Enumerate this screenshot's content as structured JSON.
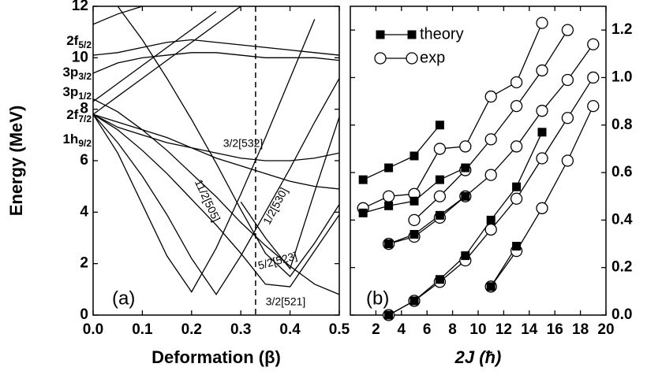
{
  "chart_data": [
    {
      "type": "line",
      "xlabel": "Deformation (β)",
      "ylabel": "Energy (MeV)",
      "panel_label": "(a)",
      "xlim": [
        0,
        0.5
      ],
      "ylim": [
        0,
        12
      ],
      "xticks": [
        {
          "value": 0,
          "label": "0.0"
        },
        0.1,
        0.2,
        0.3,
        0.4,
        0.5
      ],
      "yticks": [
        0,
        2,
        4,
        6,
        8,
        10,
        12
      ],
      "dashed_line_x": 0.33,
      "levels": [
        {
          "label": "2f",
          "sub": "5/2"
        },
        {
          "label": "3p",
          "sub": "3/2"
        },
        {
          "label": "3p",
          "sub": "1/2"
        },
        {
          "label": "2f",
          "sub": "7/2"
        },
        {
          "label": "1h",
          "sub": "9/2"
        }
      ],
      "annotations": [
        "3/2[532]",
        "11/2[505]",
        "1/2[530]",
        "5/2[523]",
        "3/2[521]"
      ],
      "color": "#000000",
      "x": [
        0,
        0.05,
        0.1,
        0.15,
        0.2,
        0.25,
        0.3,
        0.35,
        0.4,
        0.45,
        0.5
      ],
      "series": [
        {
          "values": [
            7.8,
            6.3,
            4.3,
            2.3,
            0.9,
            2.6,
            4.7,
            6.9,
            9.2,
            11.5,
            null
          ]
        },
        {
          "values": [
            7.8,
            6.7,
            5.4,
            3.9,
            2.2,
            0.8,
            2.3,
            4.0,
            5.7,
            7.5,
            9.2
          ]
        },
        {
          "values": [
            7.8,
            7.2,
            6.4,
            5.5,
            4.5,
            3.5,
            2.4,
            1.2,
            1.1,
            2.5,
            3.9
          ]
        },
        {
          "values": [
            8.4,
            7.9,
            7.2,
            6.4,
            5.5,
            4.6,
            3.6,
            2.7,
            1.9,
            1.2,
            0.8
          ]
        },
        {
          "values": [
            7.8,
            7.3,
            7.0,
            6.7,
            6.5,
            6.3,
            6.1,
            6.0,
            6.0,
            6.1,
            6.3
          ]
        },
        {
          "values": [
            7.8,
            7.5,
            7.2,
            6.9,
            6.5,
            6.1,
            5.8,
            5.5,
            5.2,
            5.0,
            4.9
          ]
        },
        {
          "values": [
            8.3,
            9.0,
            9.7,
            10.4,
            11.1,
            11.8,
            null,
            null,
            null,
            null,
            null
          ]
        },
        {
          "values": [
            9.4,
            9.8,
            10.0,
            10.1,
            10.2,
            10.2,
            10.1,
            10.0,
            10.0,
            10.0,
            9.9
          ]
        },
        {
          "values": [
            10.1,
            10.2,
            10.4,
            10.6,
            10.7,
            10.6,
            10.5,
            10.4,
            10.3,
            10.2,
            10.1
          ]
        },
        {
          "values": [
            11.3,
            11.7,
            12.0,
            null,
            null,
            null,
            null,
            null,
            null,
            null,
            null
          ]
        },
        {
          "values": [
            7.8,
            8.5,
            9.2,
            9.9,
            10.6,
            11.3,
            12.0,
            null,
            null,
            null,
            null
          ]
        },
        {
          "values": [
            null,
            12.0,
            10.7,
            9.2,
            7.6,
            5.9,
            4.1,
            2.4,
            1.5,
            2.8,
            4.3
          ]
        },
        {
          "values": [
            null,
            null,
            null,
            null,
            null,
            null,
            4.4,
            3.0,
            1.8,
            4.8,
            7.7
          ]
        }
      ]
    },
    {
      "type": "line",
      "xlabel": "2J (ħ)",
      "panel_label": "(b)",
      "xlim": [
        0,
        20
      ],
      "y2lim": [
        0,
        1.3
      ],
      "xticks": [
        2,
        4,
        6,
        8,
        10,
        12,
        14,
        16,
        18,
        20
      ],
      "y2ticks": [
        {
          "value": 0,
          "label": "0.0"
        },
        0.2,
        0.4,
        0.6,
        0.8,
        {
          "value": 1,
          "label": "1.0"
        },
        1.2
      ],
      "legend": "upper left",
      "series": [
        {
          "name": "theory",
          "color": "#000000",
          "marker": "square",
          "axis": "y2",
          "bands": [
            {
              "x": [
                1,
                3,
                5,
                7
              ],
              "values": [
                0.57,
                0.62,
                0.67,
                0.8
              ]
            },
            {
              "x": [
                1,
                3,
                5,
                7,
                9
              ],
              "values": [
                0.43,
                0.46,
                0.48,
                0.57,
                0.62
              ]
            },
            {
              "x": [
                3,
                5,
                7,
                9
              ],
              "values": [
                0.3,
                0.34,
                0.42,
                0.5
              ]
            },
            {
              "x": [
                3,
                5,
                7,
                9,
                11,
                13,
                15
              ],
              "values": [
                0,
                0.06,
                0.15,
                0.25,
                0.4,
                0.54,
                0.77
              ]
            },
            {
              "x": [
                11,
                13
              ],
              "values": [
                0.12,
                0.29
              ]
            }
          ]
        },
        {
          "name": "exp",
          "color": "#000000",
          "marker": "circle",
          "axis": "y2",
          "bands": [
            {
              "x": [
                1,
                3,
                5,
                7,
                9,
                11,
                13,
                15
              ],
              "values": [
                0.45,
                0.5,
                0.51,
                0.7,
                0.71,
                0.92,
                0.98,
                1.23
              ]
            },
            {
              "x": [
                5,
                7,
                9,
                11,
                13,
                15,
                17
              ],
              "values": [
                0.4,
                0.5,
                0.61,
                0.74,
                0.88,
                1.03,
                1.2
              ]
            },
            {
              "x": [
                3,
                5,
                7,
                9,
                11,
                13,
                15,
                17,
                19
              ],
              "values": [
                0.3,
                0.33,
                0.41,
                0.5,
                0.59,
                0.71,
                0.86,
                0.99,
                1.14
              ]
            },
            {
              "x": [
                3,
                5,
                7,
                9,
                11,
                13,
                15,
                17,
                19
              ],
              "values": [
                0,
                0.06,
                0.14,
                0.23,
                0.36,
                0.49,
                0.66,
                0.83,
                1.0
              ]
            },
            {
              "x": [
                11,
                13,
                15,
                17,
                19
              ],
              "values": [
                0.12,
                0.27,
                0.45,
                0.65,
                0.88
              ]
            }
          ]
        }
      ]
    }
  ]
}
